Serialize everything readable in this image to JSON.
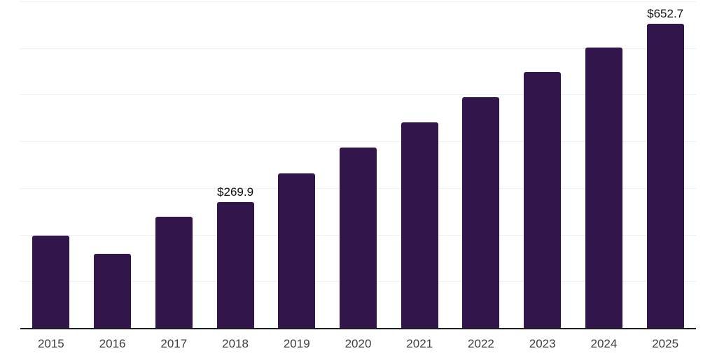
{
  "chart_data": {
    "type": "bar",
    "title": "",
    "xlabel": "",
    "ylabel": "",
    "categories": [
      "2015",
      "2016",
      "2017",
      "2018",
      "2019",
      "2020",
      "2021",
      "2022",
      "2023",
      "2024",
      "2025"
    ],
    "values": [
      198,
      159,
      238,
      269.9,
      331,
      387,
      440,
      494,
      549,
      601,
      652.7
    ],
    "value_labels": [
      "",
      "",
      "",
      "$269.9",
      "",
      "",
      "",
      "",
      "",
      "",
      "$652.7"
    ],
    "ylim": [
      0,
      700
    ],
    "gridline_values": [
      100,
      200,
      300,
      400,
      500,
      600,
      700
    ],
    "grid": "horizontal",
    "legend_position": "none"
  },
  "style": {
    "bar_color": "#32164b",
    "gridline_color": "#efefef",
    "axis_line_color": "#1f1f1f",
    "tick_label_color": "#3d3d3d",
    "value_label_color": "#111111",
    "background_color": "#ffffff"
  }
}
